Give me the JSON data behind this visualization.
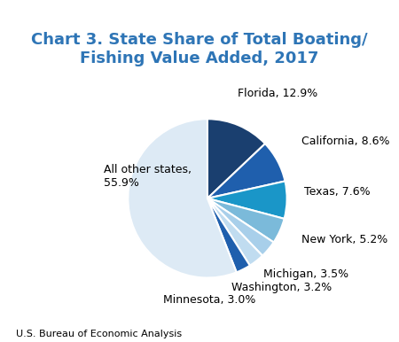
{
  "title": "Chart 3. State Share of Total Boating/\nFishing Value Added, 2017",
  "title_color": "#2E75B6",
  "footer": "U.S. Bureau of Economic Analysis",
  "labels": [
    "Florida, 12.9%",
    "California, 8.6%",
    "Texas, 7.6%",
    "New York, 5.2%",
    "Michigan, 3.5%",
    "Washington, 3.2%",
    "Minnesota, 3.0%",
    "All other states,\n55.9%"
  ],
  "values": [
    12.9,
    8.6,
    7.6,
    5.2,
    3.5,
    3.2,
    3.0,
    55.9
  ],
  "colors": [
    "#1A3F6F",
    "#1F5FAD",
    "#1A96C8",
    "#7BBADA",
    "#A8CFEA",
    "#C0DCF0",
    "#1F5FAD",
    "#DDEAF5"
  ],
  "startangle": 90,
  "background_color": "#FFFFFF",
  "label_fontsize": 9.0,
  "title_fontsize": 13,
  "footer_fontsize": 8.0
}
